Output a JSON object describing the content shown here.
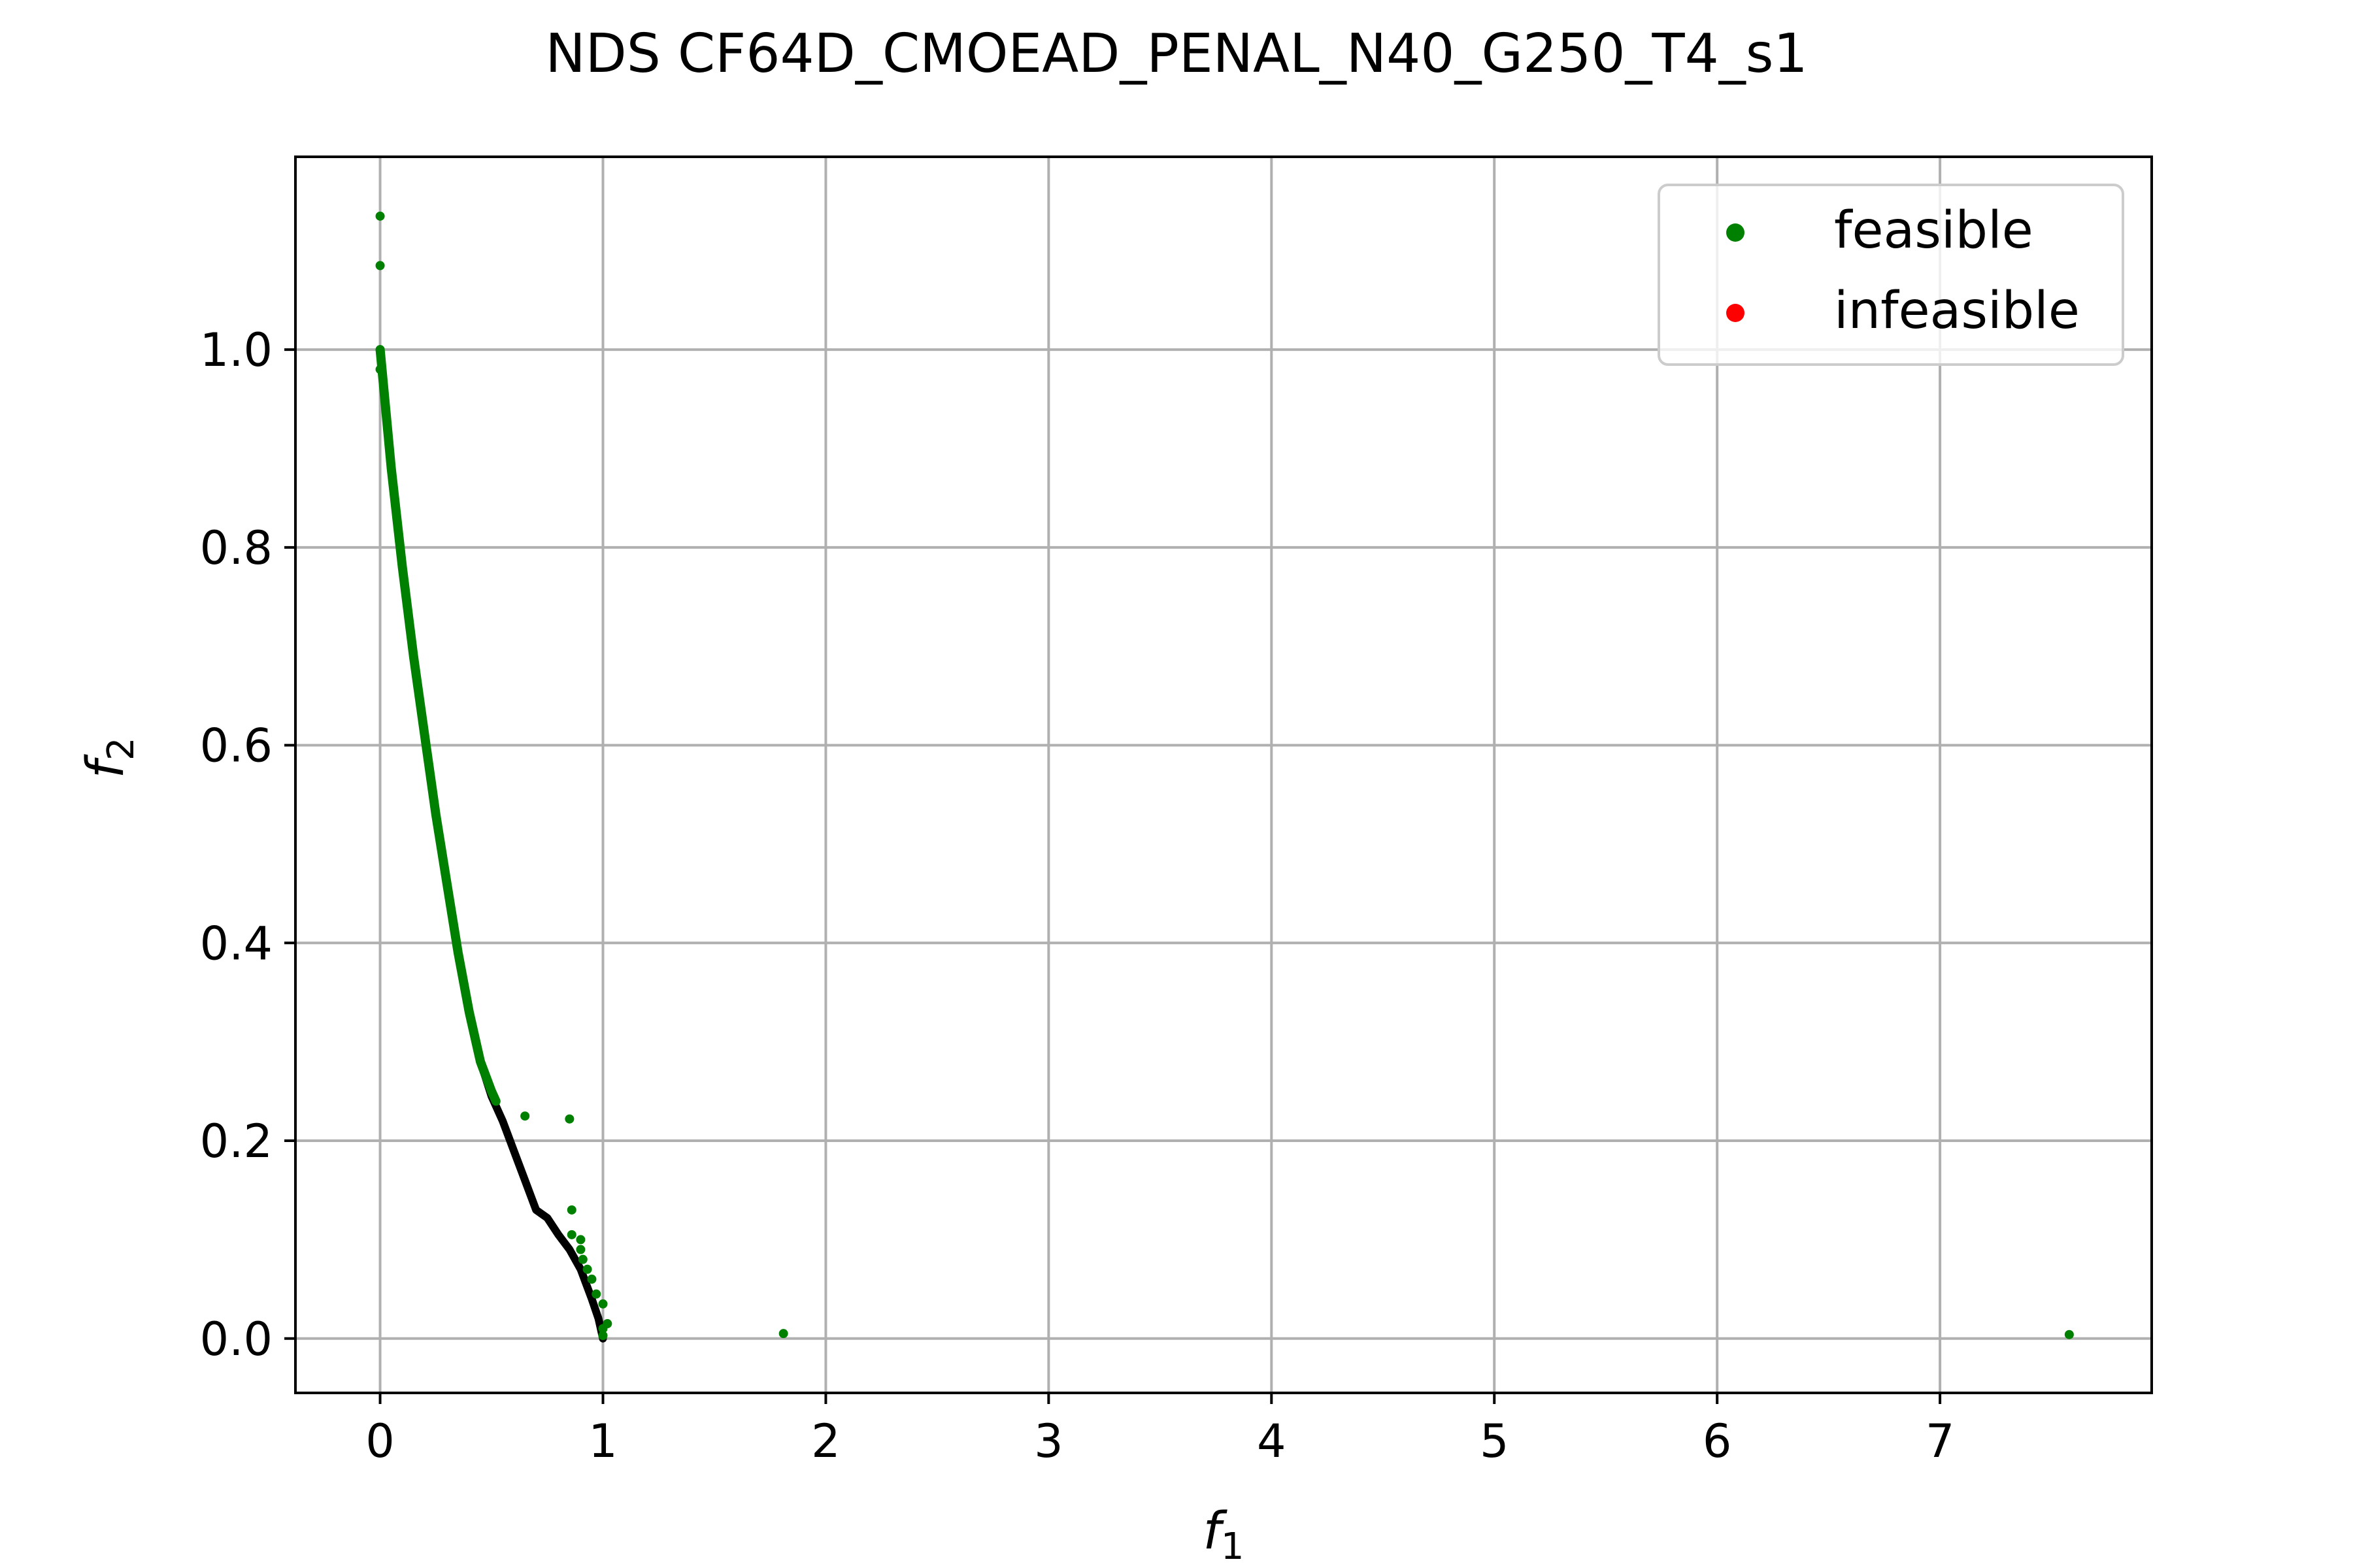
{
  "chart_data": {
    "type": "scatter",
    "title": "NDS CF64D_CMOEAD_PENAL_N40_G250_T4_s1",
    "xlabel": "f",
    "xlabel_sub": "1",
    "ylabel": "f",
    "ylabel_sub": "2",
    "xlim": [
      -0.38,
      7.95
    ],
    "ylim": [
      -0.055,
      1.195
    ],
    "xticks": [
      0,
      1,
      2,
      3,
      4,
      5,
      6,
      7
    ],
    "xtick_labels": [
      "0",
      "1",
      "2",
      "3",
      "4",
      "5",
      "6",
      "7"
    ],
    "yticks": [
      0.0,
      0.2,
      0.4,
      0.6,
      0.8,
      1.0
    ],
    "ytick_labels": [
      "0.0",
      "0.2",
      "0.4",
      "0.6",
      "0.8",
      "1.0"
    ],
    "grid": true,
    "legend_position": "top-right",
    "true_front": {
      "color": "#000000",
      "points": [
        [
          0.0,
          1.0
        ],
        [
          0.05,
          0.88
        ],
        [
          0.1,
          0.78
        ],
        [
          0.15,
          0.69
        ],
        [
          0.2,
          0.61
        ],
        [
          0.25,
          0.53
        ],
        [
          0.3,
          0.46
        ],
        [
          0.35,
          0.39
        ],
        [
          0.4,
          0.33
        ],
        [
          0.45,
          0.28
        ],
        [
          0.5,
          0.245
        ],
        [
          0.55,
          0.22
        ],
        [
          0.6,
          0.19
        ],
        [
          0.65,
          0.16
        ],
        [
          0.7,
          0.13
        ],
        [
          0.75,
          0.122
        ],
        [
          0.8,
          0.105
        ],
        [
          0.85,
          0.09
        ],
        [
          0.9,
          0.07
        ],
        [
          0.95,
          0.04
        ],
        [
          0.98,
          0.02
        ],
        [
          1.0,
          0.0
        ]
      ]
    },
    "series": [
      {
        "name": "feasible",
        "color": "#008000",
        "front_band": [
          [
            0.0,
            1.0
          ],
          [
            0.05,
            0.88
          ],
          [
            0.1,
            0.78
          ],
          [
            0.15,
            0.69
          ],
          [
            0.2,
            0.61
          ],
          [
            0.25,
            0.53
          ],
          [
            0.3,
            0.46
          ],
          [
            0.35,
            0.39
          ],
          [
            0.4,
            0.33
          ],
          [
            0.45,
            0.28
          ],
          [
            0.5,
            0.25
          ],
          [
            0.52,
            0.24
          ]
        ],
        "points": [
          [
            0.0,
            1.135
          ],
          [
            0.0,
            1.085
          ],
          [
            0.0,
            1.0
          ],
          [
            0.0,
            0.98
          ],
          [
            0.65,
            0.225
          ],
          [
            0.85,
            0.222
          ],
          [
            0.86,
            0.13
          ],
          [
            0.86,
            0.105
          ],
          [
            0.9,
            0.1
          ],
          [
            0.9,
            0.09
          ],
          [
            0.91,
            0.08
          ],
          [
            0.93,
            0.07
          ],
          [
            0.95,
            0.06
          ],
          [
            0.97,
            0.045
          ],
          [
            1.0,
            0.035
          ],
          [
            1.02,
            0.015
          ],
          [
            1.0,
            0.01
          ],
          [
            1.0,
            0.003
          ],
          [
            1.81,
            0.005
          ],
          [
            7.58,
            0.004
          ]
        ]
      },
      {
        "name": "infeasible",
        "color": "#ff0000",
        "points": []
      }
    ]
  }
}
